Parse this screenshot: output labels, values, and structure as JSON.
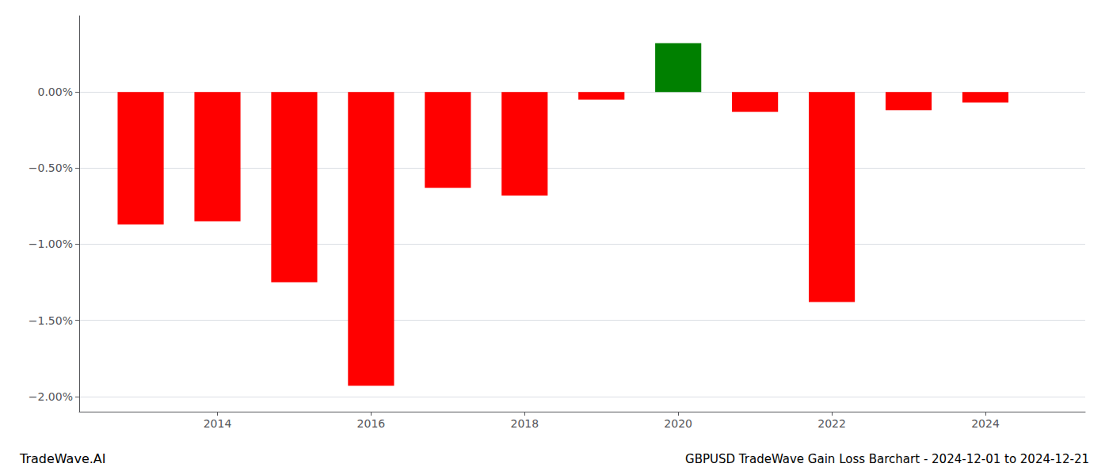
{
  "chart_data": {
    "type": "bar",
    "title": "GBPUSD TradeWave Gain Loss Barchart - 2024-12-01 to 2024-12-21",
    "annotations": [
      "TradeWave.AI"
    ],
    "x": [
      2013,
      2014,
      2015,
      2016,
      2017,
      2018,
      2019,
      2020,
      2021,
      2022,
      2023,
      2024
    ],
    "values": [
      -0.87,
      -0.85,
      -1.25,
      -1.93,
      -0.63,
      -0.68,
      -0.05,
      0.32,
      -0.13,
      -1.38,
      -0.12,
      -0.07
    ],
    "colors": [
      "#ff0000",
      "#ff0000",
      "#ff0000",
      "#ff0000",
      "#ff0000",
      "#ff0000",
      "#ff0000",
      "#008000",
      "#ff0000",
      "#ff0000",
      "#ff0000",
      "#ff0000"
    ],
    "xlim": [
      2012.2,
      2025.3
    ],
    "xticks": [
      2014,
      2016,
      2018,
      2020,
      2022,
      2024
    ],
    "ylim": [
      -2.1,
      0.5
    ],
    "yticks": [
      {
        "value": 0.0,
        "label": "0.00%"
      },
      {
        "value": -0.5,
        "label": "−0.50%"
      },
      {
        "value": -1.0,
        "label": "−1.00%"
      },
      {
        "value": -1.5,
        "label": "−1.50%"
      },
      {
        "value": -2.0,
        "label": "−2.00%"
      }
    ],
    "grid": true
  }
}
